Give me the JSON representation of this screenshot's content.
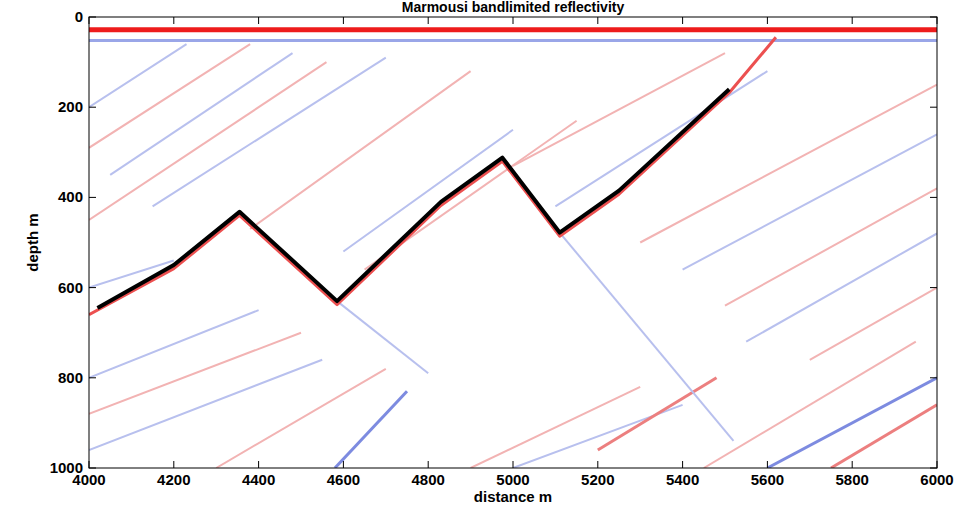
{
  "chart_data": {
    "type": "line",
    "title": "Marmousi bandlimited reflectivity",
    "x_label": "distance m",
    "y_label": "depth m",
    "xlim": [
      4000,
      6000
    ],
    "ylim": [
      1000,
      0
    ],
    "xticks": [
      4000,
      4200,
      4400,
      4600,
      4800,
      5000,
      5200,
      5400,
      5600,
      5800,
      6000
    ],
    "yticks": [
      0,
      200,
      400,
      600,
      800,
      1000
    ],
    "grid": false,
    "series": [
      {
        "color": "#ee1c1c",
        "line_style": "thick",
        "x": [
          4000,
          6000
        ],
        "values": [
          28,
          28
        ]
      },
      {
        "color": "#9aa6e8",
        "line_style": "solid",
        "x": [
          4000,
          6000
        ],
        "values": [
          52,
          52
        ]
      },
      {
        "color": "#b8c0ee",
        "line_style": "thin",
        "x": [
          4000,
          4230
        ],
        "values": [
          200,
          60
        ]
      },
      {
        "color": "#f2b3b3",
        "line_style": "thin",
        "x": [
          4000,
          4380
        ],
        "values": [
          290,
          60
        ]
      },
      {
        "color": "#b8c0ee",
        "line_style": "thin",
        "x": [
          4050,
          4480
        ],
        "values": [
          350,
          80
        ]
      },
      {
        "color": "#f2b3b3",
        "line_style": "thin",
        "x": [
          4000,
          4560
        ],
        "values": [
          450,
          100
        ]
      },
      {
        "color": "#b8c0ee",
        "line_style": "thin",
        "x": [
          4150,
          4700
        ],
        "values": [
          420,
          90
        ]
      },
      {
        "color": "#f2b3b3",
        "line_style": "thin",
        "x": [
          4380,
          4900
        ],
        "values": [
          470,
          120
        ]
      },
      {
        "color": "#b8c0ee",
        "line_style": "thin",
        "x": [
          4600,
          5000
        ],
        "values": [
          520,
          250
        ]
      },
      {
        "color": "#f2b3b3",
        "line_style": "thin",
        "x": [
          4650,
          5150
        ],
        "values": [
          560,
          230
        ]
      },
      {
        "color": "#f2b3b3",
        "line_style": "thin",
        "x": [
          5000,
          5500
        ],
        "values": [
          330,
          80
        ]
      },
      {
        "color": "#b8c0ee",
        "line_style": "thin",
        "x": [
          5100,
          5600
        ],
        "values": [
          420,
          120
        ]
      },
      {
        "color": "#f2b3b3",
        "line_style": "thin",
        "x": [
          5300,
          6000
        ],
        "values": [
          500,
          150
        ]
      },
      {
        "color": "#b8c0ee",
        "line_style": "thin",
        "x": [
          5400,
          6000
        ],
        "values": [
          560,
          260
        ]
      },
      {
        "color": "#f2b3b3",
        "line_style": "thin",
        "x": [
          5500,
          6000
        ],
        "values": [
          640,
          380
        ]
      },
      {
        "color": "#b8c0ee",
        "line_style": "thin",
        "x": [
          5550,
          6000
        ],
        "values": [
          720,
          480
        ]
      },
      {
        "color": "#f2b3b3",
        "line_style": "thin",
        "x": [
          5700,
          6000
        ],
        "values": [
          760,
          600
        ]
      },
      {
        "color": "#7d8be0",
        "line_style": "solid",
        "x": [
          5600,
          6000
        ],
        "values": [
          1000,
          800
        ]
      },
      {
        "color": "#ec7f7f",
        "line_style": "solid",
        "x": [
          5750,
          6000
        ],
        "values": [
          1000,
          860
        ]
      },
      {
        "color": "#f2b3b3",
        "line_style": "thin",
        "x": [
          5450,
          5950
        ],
        "values": [
          1000,
          720
        ]
      },
      {
        "color": "#b8c0ee",
        "line_style": "thin",
        "x": [
          4000,
          4400
        ],
        "values": [
          800,
          650
        ]
      },
      {
        "color": "#f2b3b3",
        "line_style": "thin",
        "x": [
          4000,
          4500
        ],
        "values": [
          880,
          700
        ]
      },
      {
        "color": "#b8c0ee",
        "line_style": "thin",
        "x": [
          4000,
          4550
        ],
        "values": [
          960,
          760
        ]
      },
      {
        "color": "#f2b3b3",
        "line_style": "thin",
        "x": [
          4300,
          4700
        ],
        "values": [
          1000,
          780
        ]
      },
      {
        "color": "#7d8be0",
        "line_style": "solid",
        "x": [
          4580,
          4750
        ],
        "values": [
          1000,
          830
        ]
      },
      {
        "color": "#f2b3b3",
        "line_style": "thin",
        "x": [
          4900,
          5300
        ],
        "values": [
          1000,
          820
        ]
      },
      {
        "color": "#b8c0ee",
        "line_style": "thin",
        "x": [
          5000,
          5400
        ],
        "values": [
          1000,
          860
        ]
      },
      {
        "color": "#ec7f7f",
        "line_style": "solid",
        "x": [
          5200,
          5480
        ],
        "values": [
          960,
          800
        ]
      },
      {
        "color": "#b8c0ee",
        "line_style": "thin",
        "x": [
          4000,
          4200
        ],
        "values": [
          600,
          540
        ]
      },
      {
        "color": "#b8c0ee",
        "line_style": "thin",
        "x": [
          4585,
          4800
        ],
        "values": [
          630,
          790
        ]
      },
      {
        "color": "#b8c0ee",
        "line_style": "thin",
        "x": [
          5110,
          5520
        ],
        "values": [
          478,
          940
        ]
      },
      {
        "color": "#ec5050",
        "line_style": "solid",
        "x": [
          4000,
          4200,
          4355,
          4585,
          4830,
          4975,
          5110,
          5250,
          5510,
          5620
        ],
        "values": [
          660,
          558,
          440,
          638,
          418,
          320,
          486,
          393,
          168,
          45
        ]
      },
      {
        "color": "#000000",
        "line_style": "thick",
        "x": [
          4020,
          4200,
          4355,
          4585,
          4830,
          4975,
          5110,
          5250,
          5510
        ],
        "values": [
          645,
          550,
          432,
          630,
          410,
          312,
          478,
          385,
          160
        ]
      }
    ]
  }
}
